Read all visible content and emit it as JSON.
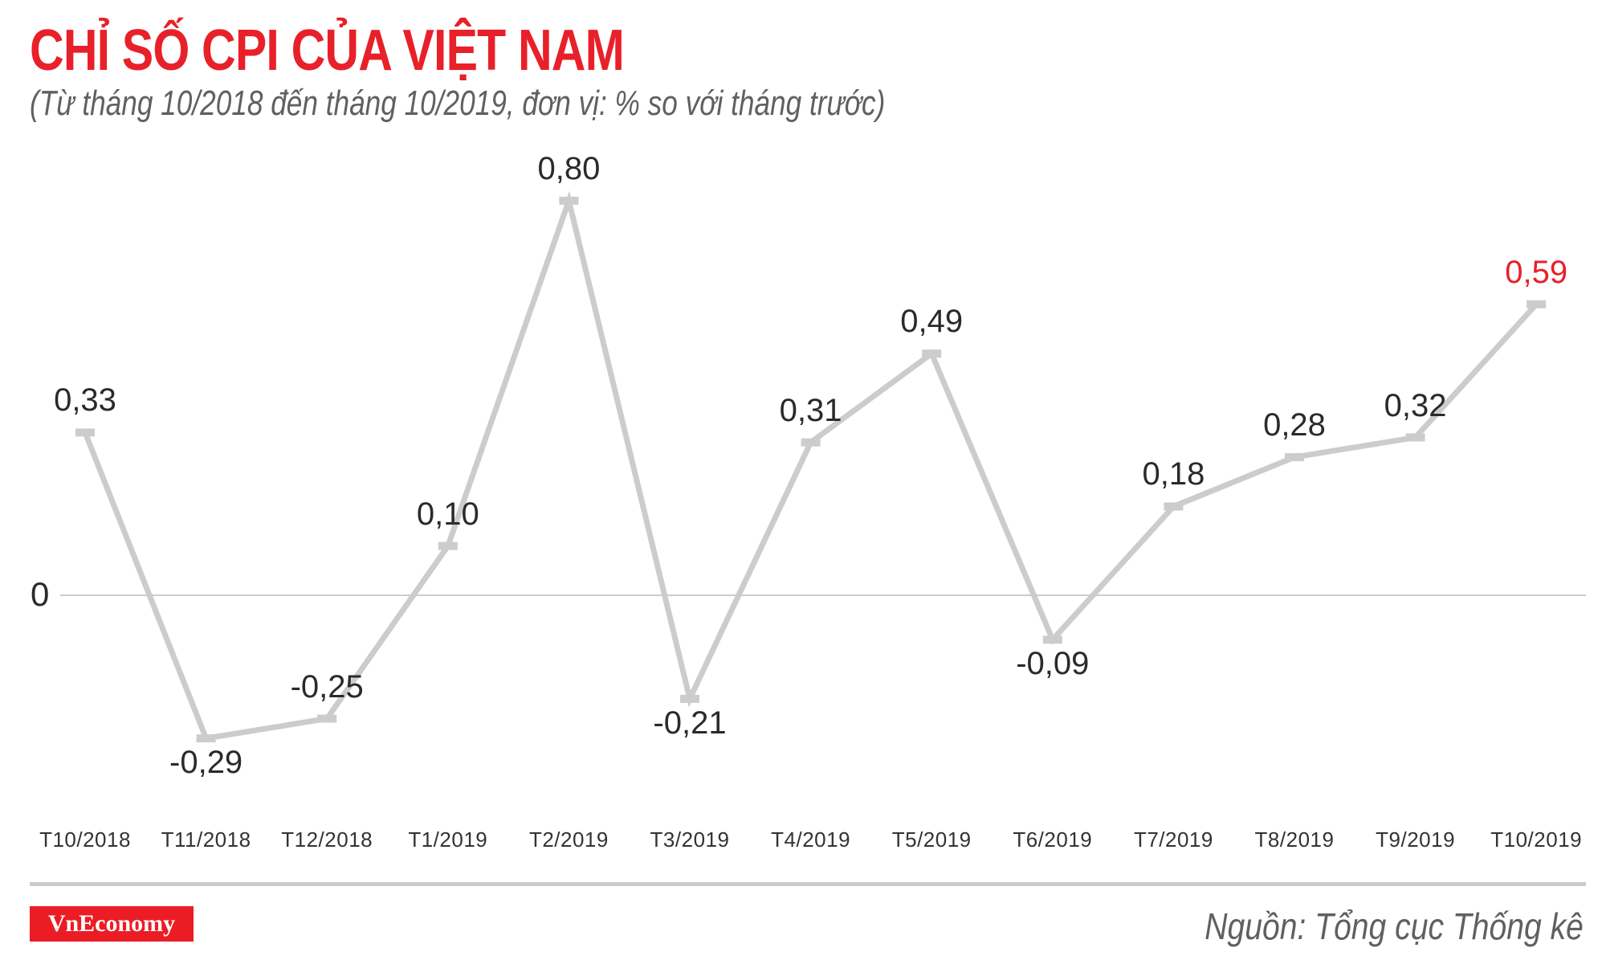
{
  "header": {
    "title": "CHỈ SỐ CPI CỦA VIỆT NAM",
    "subtitle": "(Từ tháng 10/2018 đến tháng 10/2019, đơn vị: % so với tháng trước)"
  },
  "axis": {
    "zero_label": "0"
  },
  "footer": {
    "logo_text": "VnEconomy",
    "source": "Nguồn: Tổng cục Thống kê"
  },
  "colors": {
    "title": "#e8202a",
    "line": "#cccccc",
    "highlight": "#e8202a",
    "label": "#2a2a2a",
    "logo_bg": "#ec1c24"
  },
  "chart_data": {
    "type": "line",
    "title": "CHỈ SỐ CPI CỦA VIỆT NAM",
    "subtitle": "(Từ tháng 10/2018 đến tháng 10/2019, đơn vị: % so với tháng trước)",
    "xlabel": "",
    "ylabel": "% so với tháng trước",
    "categories": [
      "T10/2018",
      "T11/2018",
      "T12/2018",
      "T1/2019",
      "T2/2019",
      "T3/2019",
      "T4/2019",
      "T5/2019",
      "T6/2019",
      "T7/2019",
      "T8/2019",
      "T9/2019",
      "T10/2019"
    ],
    "series": [
      {
        "name": "CPI",
        "values": [
          0.33,
          -0.29,
          -0.25,
          0.1,
          0.8,
          -0.21,
          0.31,
          0.49,
          -0.09,
          0.18,
          0.28,
          0.32,
          0.59
        ],
        "labels": [
          "0,33",
          "-0,29",
          "-0,25",
          "0,10",
          "0,80",
          "-0,21",
          "0,31",
          "0,49",
          "-0,09",
          "0,18",
          "0,28",
          "0,32",
          "0,59"
        ]
      }
    ],
    "highlight_index": 12,
    "ylim": [
      -0.35,
      0.85
    ],
    "grid": false,
    "zero_line": true,
    "legend": "none",
    "source": "Nguồn: Tổng cục Thống kê"
  }
}
